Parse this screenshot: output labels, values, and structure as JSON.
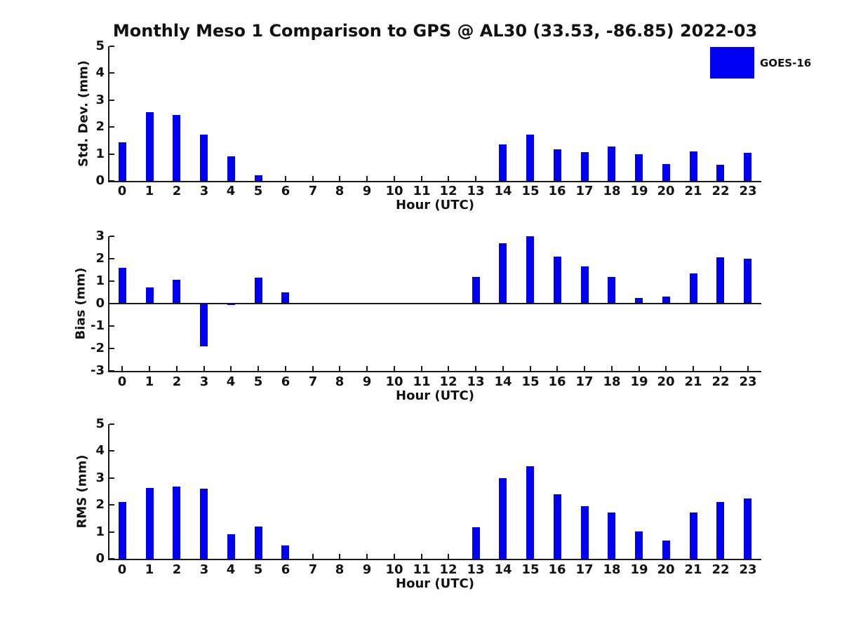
{
  "title": "Monthly Meso 1 Comparison to GPS @ AL30 (33.53, -86.85) 2022-03",
  "legend": {
    "label": "GOES-16",
    "color": "#0000f5",
    "position": "upper right"
  },
  "colors": {
    "bar": "#0000f5",
    "axis": "#1a1a1a",
    "text": "#111111",
    "background": "#ffffff"
  },
  "chart_data": [
    {
      "type": "bar",
      "name": "std-dev-by-hour",
      "ylabel": "Std. Dev. (mm)",
      "xlabel": "Hour (UTC)",
      "categories": [
        "0",
        "1",
        "2",
        "3",
        "4",
        "5",
        "6",
        "7",
        "8",
        "9",
        "10",
        "11",
        "12",
        "13",
        "14",
        "15",
        "16",
        "17",
        "18",
        "19",
        "20",
        "21",
        "22",
        "23"
      ],
      "values": [
        1.43,
        2.55,
        2.45,
        1.72,
        0.9,
        0.22,
        0,
        0,
        0,
        0,
        0,
        0,
        0,
        0,
        1.35,
        1.72,
        1.18,
        1.08,
        1.28,
        1.0,
        0.63,
        1.1,
        0.6,
        1.03
      ],
      "ylim": [
        0,
        5
      ],
      "yticks": [
        0,
        1,
        2,
        3,
        4,
        5
      ],
      "grid": false,
      "legend_entries": [
        "GOES-16"
      ]
    },
    {
      "type": "bar",
      "name": "bias-by-hour",
      "ylabel": "Bias (mm)",
      "xlabel": "Hour (UTC)",
      "categories": [
        "0",
        "1",
        "2",
        "3",
        "4",
        "5",
        "6",
        "7",
        "8",
        "9",
        "10",
        "11",
        "12",
        "13",
        "14",
        "15",
        "16",
        "17",
        "18",
        "19",
        "20",
        "21",
        "22",
        "23"
      ],
      "values": [
        1.6,
        0.72,
        1.05,
        -1.9,
        -0.05,
        1.15,
        0.5,
        0,
        0,
        0,
        0,
        0,
        0,
        1.2,
        2.7,
        3.0,
        2.1,
        1.65,
        1.2,
        0.26,
        0.3,
        1.35,
        2.05,
        2.0
      ],
      "ylim": [
        -3,
        3
      ],
      "yticks": [
        -3,
        -2,
        -1,
        0,
        1,
        2,
        3
      ],
      "grid": false
    },
    {
      "type": "bar",
      "name": "rms-by-hour",
      "ylabel": "RMS (mm)",
      "xlabel": "Hour (UTC)",
      "categories": [
        "0",
        "1",
        "2",
        "3",
        "4",
        "5",
        "6",
        "7",
        "8",
        "9",
        "10",
        "11",
        "12",
        "13",
        "14",
        "15",
        "16",
        "17",
        "18",
        "19",
        "20",
        "21",
        "22",
        "23"
      ],
      "values": [
        2.1,
        2.62,
        2.67,
        2.6,
        0.9,
        1.2,
        0.5,
        0,
        0,
        0,
        0,
        0,
        0,
        1.18,
        3.0,
        3.45,
        2.4,
        1.95,
        1.73,
        1.02,
        0.68,
        1.73,
        2.1,
        2.25
      ],
      "ylim": [
        0,
        5
      ],
      "yticks": [
        0,
        1,
        2,
        3,
        4,
        5
      ],
      "grid": false
    }
  ]
}
